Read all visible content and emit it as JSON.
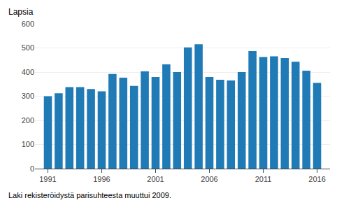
{
  "chart_data": {
    "type": "bar",
    "x": [
      1991,
      1992,
      1993,
      1994,
      1995,
      1996,
      1997,
      1998,
      1999,
      2000,
      2001,
      2002,
      2003,
      2004,
      2005,
      2006,
      2007,
      2008,
      2009,
      2010,
      2011,
      2012,
      2013,
      2014,
      2015,
      2016
    ],
    "values": [
      300,
      312,
      338,
      338,
      330,
      320,
      392,
      377,
      343,
      403,
      380,
      432,
      400,
      502,
      515,
      380,
      368,
      365,
      400,
      487,
      462,
      465,
      458,
      443,
      406,
      355
    ],
    "color": "#1f7ab5",
    "xlim": [
      1989.8,
      2017.2
    ],
    "xticks": [
      1991,
      1996,
      2001,
      2006,
      2011,
      2016
    ],
    "ylim": [
      0,
      600
    ],
    "yticks": [
      0,
      100,
      200,
      300,
      400,
      500,
      600
    ],
    "grid": "y",
    "annotations": [
      "Lapsia",
      "Laki rekisteröidystä parisuhteesta muuttui 2009."
    ]
  }
}
